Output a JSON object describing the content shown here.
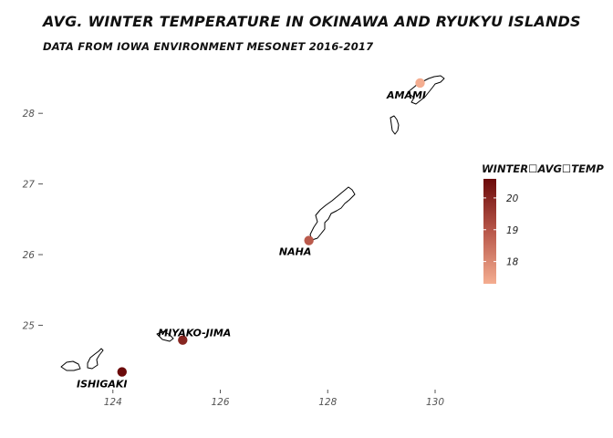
{
  "header": {
    "title": "Avg. Winter Temperature in Okinawa and Ryukyu Islands",
    "subtitle": "Data from Iowa Environment Mesonet 2016-2017"
  },
  "colors": {
    "low": "#f4ad90",
    "high": "#6b0a0a",
    "outline": "#000000",
    "tick": "#555555"
  },
  "chart_data": {
    "type": "scatter",
    "x_ticks": [
      "124",
      "126",
      "128",
      "130"
    ],
    "y_ticks": [
      "25",
      "26",
      "27",
      "28"
    ],
    "xlim": [
      122.9,
      130.9
    ],
    "ylim": [
      24.05,
      28.7
    ],
    "grid": false,
    "legend_placement": "right",
    "legend": {
      "title": "winter☐avg☐temp",
      "ticks": [
        "20",
        "19",
        "18"
      ],
      "range": [
        17.3,
        20.6
      ]
    },
    "stations": [
      {
        "name": "AMAMI",
        "lon": 129.72,
        "lat": 28.43,
        "temp": 17.2
      },
      {
        "name": "NAHA",
        "lon": 127.65,
        "lat": 26.2,
        "temp": 18.9
      },
      {
        "name": "MIYAKO-JIMA",
        "lon": 125.3,
        "lat": 24.79,
        "temp": 20.0
      },
      {
        "name": "ISHIGAKI",
        "lon": 124.17,
        "lat": 24.34,
        "temp": 20.6
      }
    ]
  }
}
